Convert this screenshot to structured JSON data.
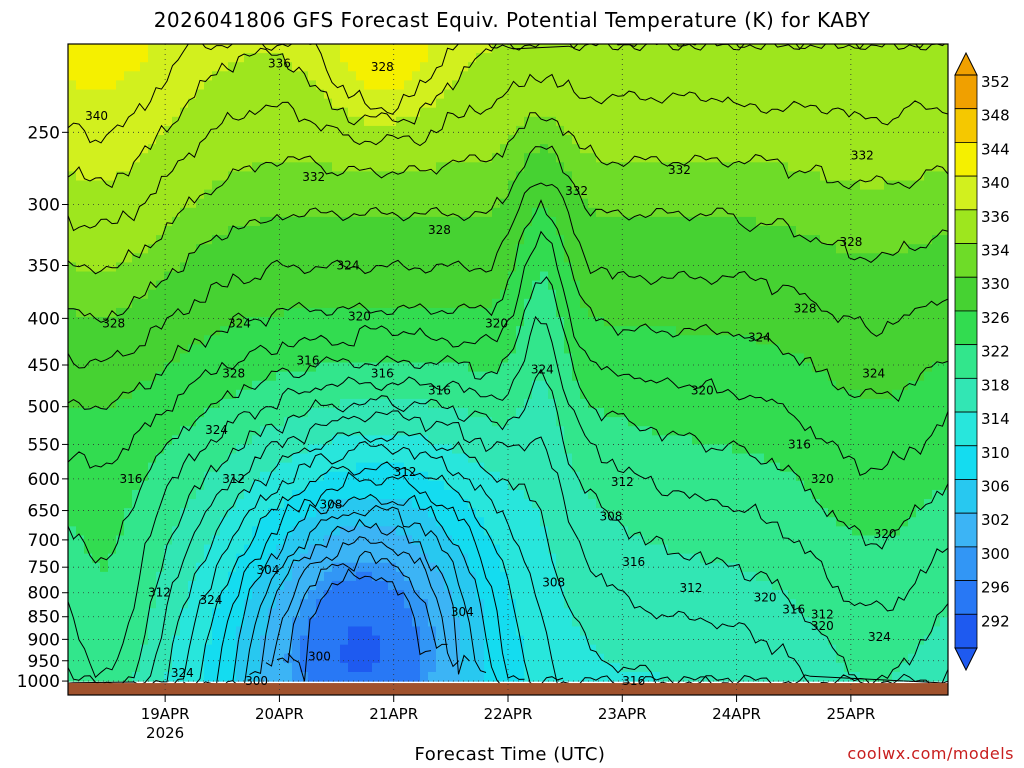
{
  "chart_data": {
    "type": "heatmap",
    "title": "2026041806 GFS Forecast Equiv. Potential Temperature (K) for KABY",
    "xlabel": "Forecast Time (UTC)",
    "ylabel": "",
    "y_axis": {
      "ticks": [
        250,
        300,
        350,
        400,
        450,
        500,
        550,
        600,
        650,
        700,
        750,
        800,
        850,
        900,
        950,
        1000
      ],
      "ylim": [
        200,
        1010
      ],
      "reversed": true,
      "log_scale": true
    },
    "x_axis": {
      "ticks": [
        "19APR",
        "20APR",
        "21APR",
        "22APR",
        "23APR",
        "24APR",
        "25APR"
      ],
      "year_label": "2026",
      "xlim": [
        -0.85,
        6.85
      ]
    },
    "grid": true,
    "colorbar": {
      "levels": [
        292,
        296,
        300,
        302,
        306,
        310,
        314,
        318,
        322,
        326,
        330,
        334,
        336,
        340,
        344,
        348,
        352
      ],
      "labels": [
        "292",
        "296",
        "300",
        "302",
        "306",
        "310",
        "314",
        "318",
        "322",
        "326",
        "330",
        "334",
        "336",
        "340",
        "344",
        "348",
        "352"
      ],
      "colors": [
        "#1e5af0",
        "#2878f5",
        "#3296f5",
        "#3cb4f5",
        "#28c8f0",
        "#14dcf0",
        "#28e6dc",
        "#32e6b4",
        "#32e68c",
        "#32dc50",
        "#46d232",
        "#6edc28",
        "#9ee61e",
        "#d2f01e",
        "#f5f000",
        "#f5c800",
        "#f0a000"
      ]
    },
    "contour_labels": [
      "340",
      "336",
      "328",
      "332",
      "332",
      "332",
      "328",
      "332",
      "328",
      "324",
      "328",
      "328",
      "320",
      "324",
      "320",
      "324",
      "316",
      "324",
      "316",
      "316",
      "320",
      "324",
      "328",
      "324",
      "316",
      "312",
      "316",
      "320",
      "312",
      "308",
      "312",
      "308",
      "320",
      "304",
      "316",
      "312",
      "324",
      "308",
      "320",
      "312",
      "316",
      "304",
      "312",
      "320",
      "324",
      "324",
      "300",
      "300",
      "316"
    ],
    "series": [
      {
        "values": [
          340,
          336,
          332,
          330,
          332,
          334,
          336,
          332,
          332,
          332
        ]
      },
      {
        "values": [
          328,
          324,
          326,
          322,
          318,
          320,
          318,
          320,
          324,
          324
        ]
      },
      {
        "values": [
          320,
          316,
          320,
          312,
          308,
          310,
          312,
          316,
          320,
          320
        ]
      },
      {
        "values": [
          324,
          320,
          304,
          300,
          302,
          304,
          308,
          312,
          316,
          324
        ]
      }
    ]
  },
  "credit": "coolwx.com/models"
}
